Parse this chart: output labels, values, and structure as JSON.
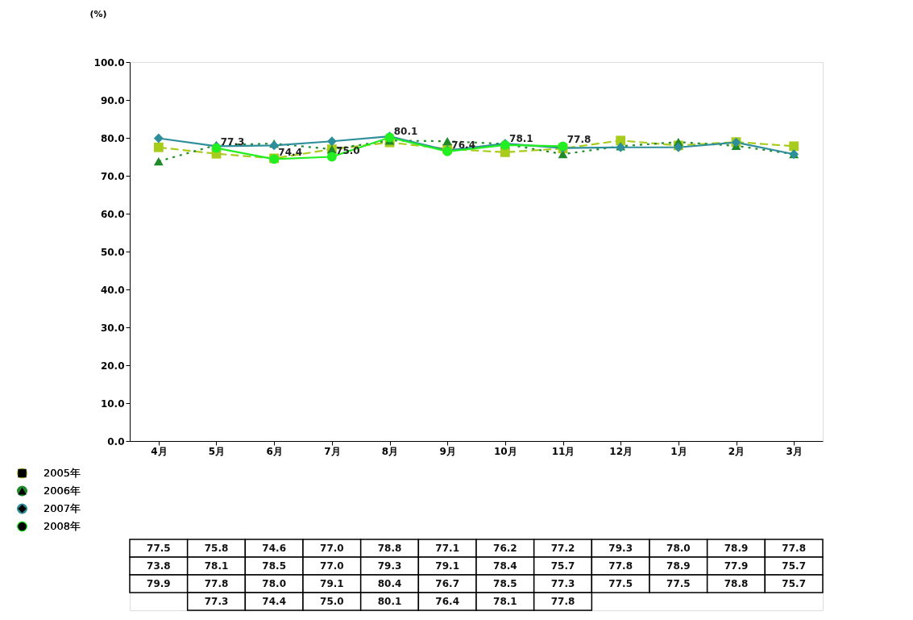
{
  "chart_data": {
    "type": "line",
    "ylabel": "(%)",
    "categories": [
      "4月",
      "5月",
      "6月",
      "7月",
      "8月",
      "9月",
      "10月",
      "11月",
      "12月",
      "1月",
      "2月",
      "3月"
    ],
    "ylim": [
      0,
      100
    ],
    "yticks": [
      {
        "value": 0,
        "label": "0.0"
      },
      {
        "value": 10,
        "label": "10.0"
      },
      {
        "value": 20,
        "label": "20.0"
      },
      {
        "value": 30,
        "label": "30.0"
      },
      {
        "value": 40,
        "label": "40.0"
      },
      {
        "value": 50,
        "label": "50.0"
      },
      {
        "value": 60,
        "label": "60.0"
      },
      {
        "value": 70,
        "label": "70.0"
      },
      {
        "value": 80,
        "label": "80.0"
      },
      {
        "value": 90,
        "label": "90.0"
      },
      {
        "value": 100,
        "label": "100.0"
      }
    ],
    "legend": "bottom left",
    "grid": false,
    "series": [
      {
        "name": "2005年",
        "color": "#a8cc1c",
        "marker": "square",
        "line_style": "dashed",
        "values": [
          77.5,
          75.8,
          74.6,
          77.0,
          78.8,
          77.1,
          76.2,
          77.2,
          79.3,
          78.0,
          78.9,
          77.8
        ],
        "value_labels": [
          "77.5",
          "75.8",
          "74.6",
          "77.0",
          "78.8",
          "77.1",
          "76.2",
          "77.2",
          "79.3",
          "78.0",
          "78.9",
          "77.8"
        ]
      },
      {
        "name": "2006年",
        "color": "#1f8a2a",
        "marker": "triangle",
        "line_style": "dotted",
        "values": [
          73.8,
          78.1,
          78.5,
          77.0,
          79.3,
          79.1,
          78.4,
          75.7,
          77.8,
          78.9,
          77.9,
          75.7
        ],
        "value_labels": [
          "73.8",
          "78.1",
          "78.5",
          "77.0",
          "79.3",
          "79.1",
          "78.4",
          "75.7",
          "77.8",
          "78.9",
          "77.9",
          "75.7"
        ]
      },
      {
        "name": "2007年",
        "color": "#2e8f9a",
        "marker": "diamond",
        "line_style": "solid",
        "values": [
          79.9,
          77.8,
          78.0,
          79.1,
          80.4,
          76.7,
          78.5,
          77.3,
          77.5,
          77.5,
          78.8,
          75.7
        ],
        "value_labels": [
          "79.9",
          "77.8",
          "78.0",
          "79.1",
          "80.4",
          "76.7",
          "78.5",
          "77.3",
          "77.5",
          "77.5",
          "78.8",
          "75.7"
        ]
      },
      {
        "name": "2008年",
        "color": "#22ee22",
        "data_labels": true,
        "marker": "circle",
        "line_style": "solid",
        "values": [
          null,
          77.3,
          74.4,
          75.0,
          80.1,
          76.4,
          78.1,
          77.8,
          null,
          null,
          null,
          null
        ],
        "value_labels": [
          null,
          "77.3",
          "74.4",
          "75.0",
          "80.1",
          "76.4",
          "78.1",
          "77.8",
          null,
          null,
          null,
          null
        ]
      }
    ]
  }
}
